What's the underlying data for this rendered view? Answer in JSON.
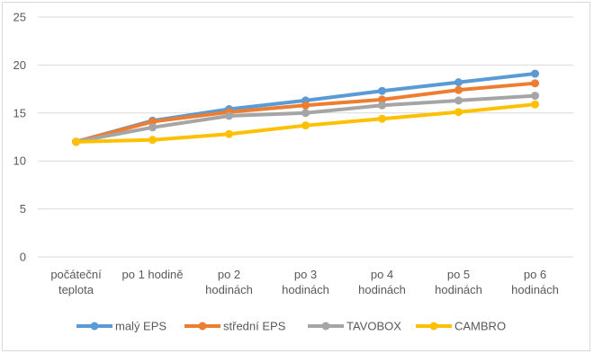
{
  "chart_data": {
    "type": "line",
    "categories": [
      [
        "počáteční",
        "teplota"
      ],
      [
        "po 1 hodině"
      ],
      [
        "po 2",
        "hodinách"
      ],
      [
        "po 3",
        "hodinách"
      ],
      [
        "po 4",
        "hodinách"
      ],
      [
        "po 5",
        "hodinách"
      ],
      [
        "po 6",
        "hodinách"
      ]
    ],
    "ylim": [
      0,
      25
    ],
    "yticks": [
      0,
      5,
      10,
      15,
      20,
      25
    ],
    "grid": true,
    "legend_position": "bottom",
    "series": [
      {
        "name": "malý EPS",
        "color": "#5b9bd5",
        "values": [
          12.0,
          14.2,
          15.4,
          16.3,
          17.3,
          18.2,
          19.1
        ]
      },
      {
        "name": "střední EPS",
        "color": "#ed7d31",
        "values": [
          12.0,
          14.1,
          15.1,
          15.8,
          16.4,
          17.4,
          18.1
        ]
      },
      {
        "name": "TAVOBOX",
        "color": "#a5a5a5",
        "values": [
          12.0,
          13.5,
          14.7,
          15.0,
          15.8,
          16.3,
          16.8
        ]
      },
      {
        "name": "CAMBRO",
        "color": "#ffc000",
        "values": [
          12.0,
          12.2,
          12.8,
          13.7,
          14.4,
          15.1,
          15.9
        ]
      }
    ]
  }
}
